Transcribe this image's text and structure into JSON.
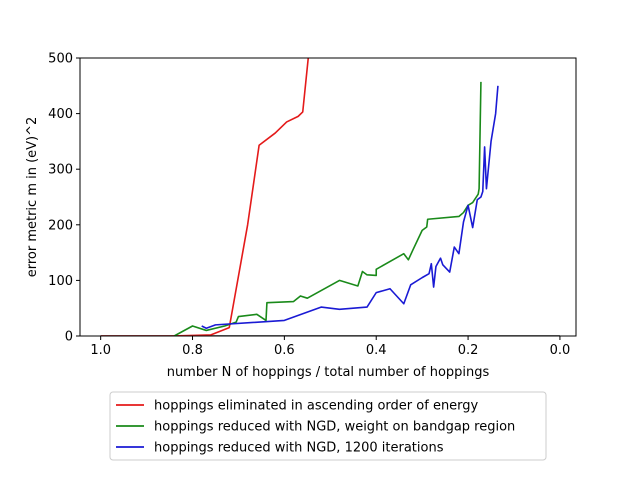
{
  "chart_data": {
    "type": "line",
    "title": "",
    "xlabel": "number N of hoppings / total number of hoppings",
    "ylabel": "error metric m in (eV)^2",
    "xlim": [
      1.045,
      -0.035
    ],
    "ylim": [
      0,
      500
    ],
    "x_inverted": true,
    "xticks": [
      1.0,
      0.8,
      0.6,
      0.4,
      0.2,
      0.0
    ],
    "xtick_labels": [
      "1.0",
      "0.8",
      "0.6",
      "0.4",
      "0.2",
      "0.0"
    ],
    "yticks": [
      0,
      100,
      200,
      300,
      400,
      500
    ],
    "ytick_labels": [
      "0",
      "100",
      "200",
      "300",
      "400",
      "500"
    ],
    "grid": false,
    "legend_placement": "below",
    "baseline": {
      "x": [
        1.0,
        0.0
      ],
      "y": [
        0,
        0
      ],
      "color": "#000000"
    },
    "series": [
      {
        "name": "hoppings eliminated in ascending order of energy",
        "color": "#e41a1a",
        "x": [
          1.0,
          0.85,
          0.76,
          0.72,
          0.68,
          0.655,
          0.62,
          0.595,
          0.57,
          0.56,
          0.548
        ],
        "y": [
          0,
          0,
          2,
          15,
          200,
          343,
          365,
          385,
          395,
          403,
          500
        ]
      },
      {
        "name": "hoppings reduced with NGD, weight on bandgap region",
        "color": "#1a8a1a",
        "x": [
          0.84,
          0.8,
          0.77,
          0.73,
          0.705,
          0.7,
          0.66,
          0.64,
          0.638,
          0.58,
          0.565,
          0.55,
          0.48,
          0.44,
          0.43,
          0.42,
          0.4,
          0.4,
          0.34,
          0.33,
          0.32,
          0.3,
          0.29,
          0.288,
          0.22,
          0.21,
          0.2,
          0.19,
          0.178,
          0.176,
          0.172
        ],
        "y": [
          0,
          18,
          10,
          18,
          25,
          35,
          39,
          28,
          60,
          62,
          72,
          68,
          100,
          90,
          116,
          110,
          109,
          120,
          148,
          137,
          155,
          190,
          196,
          210,
          215,
          222,
          235,
          240,
          255,
          265,
          457
        ]
      },
      {
        "name": "hoppings reduced with NGD, 1200 iterations",
        "color": "#1a1ad4",
        "x": [
          0.78,
          0.77,
          0.75,
          0.6,
          0.52,
          0.48,
          0.42,
          0.4,
          0.37,
          0.34,
          0.325,
          0.3,
          0.285,
          0.28,
          0.275,
          0.27,
          0.26,
          0.255,
          0.24,
          0.23,
          0.22,
          0.21,
          0.2,
          0.19,
          0.18,
          0.172,
          0.168,
          0.164,
          0.16,
          0.15,
          0.14,
          0.135
        ],
        "y": [
          18,
          14,
          20,
          28,
          52,
          48,
          52,
          78,
          85,
          58,
          92,
          105,
          112,
          130,
          88,
          125,
          140,
          128,
          115,
          160,
          148,
          205,
          235,
          195,
          245,
          250,
          260,
          340,
          265,
          350,
          400,
          450
        ]
      }
    ]
  }
}
